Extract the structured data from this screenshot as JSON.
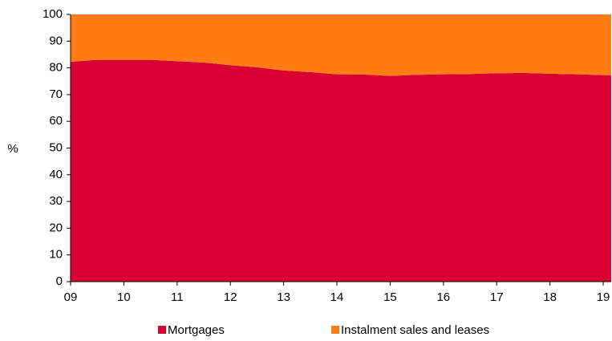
{
  "chart_data": {
    "type": "stacked_area",
    "y_label": "%",
    "x": [
      9,
      9.5,
      10,
      10.5,
      11,
      11.5,
      12,
      12.5,
      13,
      13.5,
      14,
      14.5,
      15,
      15.5,
      16,
      16.5,
      17,
      17.5,
      18,
      18.5,
      19,
      19.15
    ],
    "series": [
      {
        "name": "Mortgages",
        "color": "#d90032",
        "values": [
          82.3,
          83,
          83,
          83,
          82.5,
          82,
          81,
          80.2,
          79,
          78.4,
          77.6,
          77.5,
          77,
          77.4,
          77.6,
          77.7,
          78,
          78.1,
          77.8,
          77.6,
          77.3,
          77.2
        ]
      },
      {
        "name": "Instalment sales and leases",
        "color": "#ff7b14",
        "values": [
          17.7,
          17,
          17,
          17,
          17.5,
          18,
          19,
          19.8,
          21,
          21.6,
          22.4,
          22.5,
          23,
          22.6,
          22.4,
          22.3,
          22,
          21.9,
          22.2,
          22.4,
          22.7,
          22.8
        ]
      }
    ],
    "xlim": [
      9,
      19.15
    ],
    "xticks": [
      {
        "value": 9,
        "label": "09"
      },
      10,
      11,
      12,
      13,
      14,
      15,
      16,
      17,
      18,
      19
    ],
    "ylim": [
      0,
      100
    ],
    "yticks": [
      0,
      10,
      20,
      30,
      40,
      50,
      60,
      70,
      80,
      90,
      100
    ],
    "legend": "bottom"
  }
}
